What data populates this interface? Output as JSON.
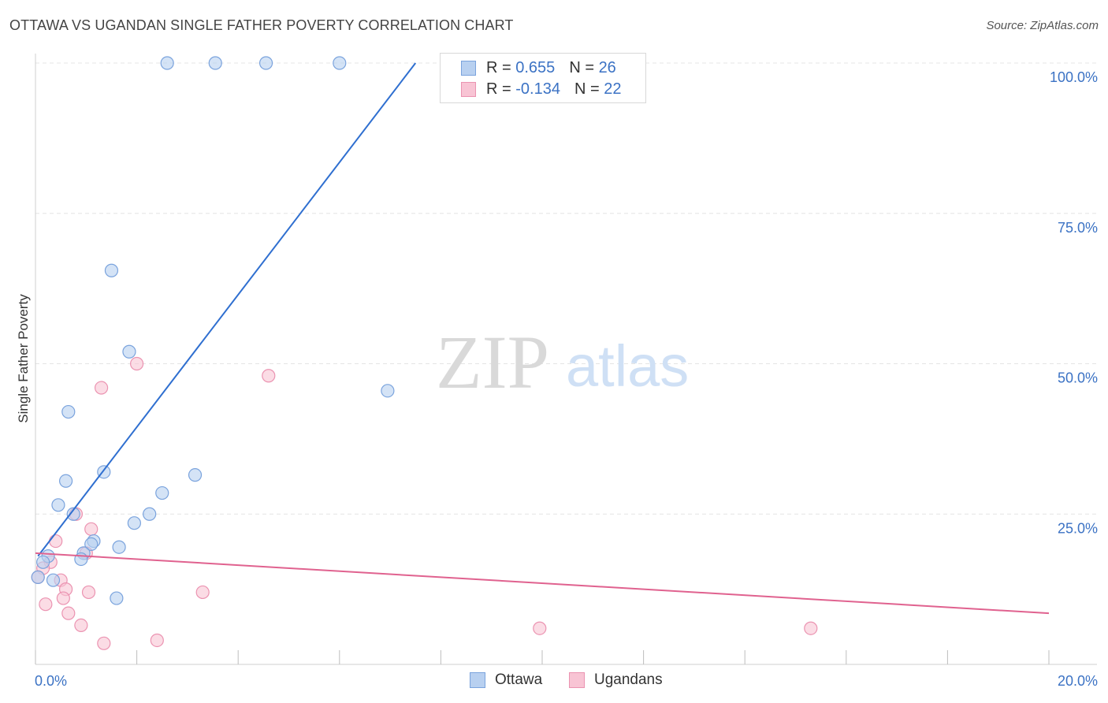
{
  "title": "OTTAWA VS UGANDAN SINGLE FATHER POVERTY CORRELATION CHART",
  "source": "Source: ZipAtlas.com",
  "watermark": {
    "zip": "ZIP",
    "atlas": "atlas"
  },
  "legend": {
    "ottawa": {
      "r_label": "R = ",
      "r_value": "0.655",
      "n_label": "N = ",
      "n_value": "26"
    },
    "ugandans": {
      "r_label": "R = ",
      "r_value": "-0.134",
      "n_label": "N = ",
      "n_value": "22"
    }
  },
  "bottom_legend": [
    "Ottawa",
    "Ugandans"
  ],
  "colors": {
    "ottawa_fill": "#b8d0f0",
    "ottawa_stroke": "#7aa3dd",
    "ottawa_line": "#2f6fd0",
    "ugandans_fill": "#f8c4d4",
    "ugandans_stroke": "#eb93b1",
    "ugandans_line": "#e0628f",
    "tick_text": "#3b72c4",
    "grid": "#e4e4e4"
  },
  "chart_data": {
    "type": "scatter",
    "title": "OTTAWA VS UGANDAN SINGLE FATHER POVERTY CORRELATION CHART",
    "xlabel": "",
    "ylabel": "Single Father Poverty",
    "xlim": [
      0,
      20
    ],
    "ylim": [
      0,
      100
    ],
    "x_tick_labels": [
      "0.0%",
      "20.0%"
    ],
    "y_ticks": [
      25,
      50,
      75,
      100
    ],
    "y_tick_labels": [
      "25.0%",
      "50.0%",
      "75.0%",
      "100.0%"
    ],
    "series": [
      {
        "name": "Ottawa",
        "points": [
          [
            2.6,
            100
          ],
          [
            3.55,
            100
          ],
          [
            4.55,
            100
          ],
          [
            6.0,
            100
          ],
          [
            1.5,
            65.5
          ],
          [
            1.85,
            52
          ],
          [
            6.95,
            45.5
          ],
          [
            0.65,
            42
          ],
          [
            0.6,
            30.5
          ],
          [
            1.35,
            32
          ],
          [
            3.15,
            31.5
          ],
          [
            0.45,
            26.5
          ],
          [
            2.5,
            28.5
          ],
          [
            0.75,
            25
          ],
          [
            2.25,
            25
          ],
          [
            1.95,
            23.5
          ],
          [
            1.15,
            20.5
          ],
          [
            1.1,
            20
          ],
          [
            1.65,
            19.5
          ],
          [
            0.95,
            18.5
          ],
          [
            0.9,
            17.5
          ],
          [
            0.25,
            18
          ],
          [
            0.15,
            17
          ],
          [
            0.35,
            14
          ],
          [
            1.6,
            11
          ],
          [
            0.05,
            14.5
          ]
        ],
        "trend": {
          "x0": 0.05,
          "y0": 18,
          "x1": 7.5,
          "y1": 100
        }
      },
      {
        "name": "Ugandans",
        "points": [
          [
            2.0,
            50
          ],
          [
            1.3,
            46
          ],
          [
            4.6,
            48
          ],
          [
            0.8,
            25
          ],
          [
            1.1,
            22.5
          ],
          [
            0.4,
            20.5
          ],
          [
            1.0,
            18.5
          ],
          [
            0.3,
            17
          ],
          [
            0.15,
            16
          ],
          [
            0.5,
            14
          ],
          [
            0.6,
            12.5
          ],
          [
            1.05,
            12
          ],
          [
            3.3,
            12
          ],
          [
            0.55,
            11
          ],
          [
            0.2,
            10
          ],
          [
            0.65,
            8.5
          ],
          [
            0.9,
            6.5
          ],
          [
            9.95,
            6
          ],
          [
            15.3,
            6
          ],
          [
            2.4,
            4
          ],
          [
            1.35,
            3.5
          ],
          [
            0.05,
            14.5
          ]
        ],
        "trend": {
          "x0": 0,
          "y0": 18.5,
          "x1": 20,
          "y1": 8.5
        }
      }
    ]
  }
}
